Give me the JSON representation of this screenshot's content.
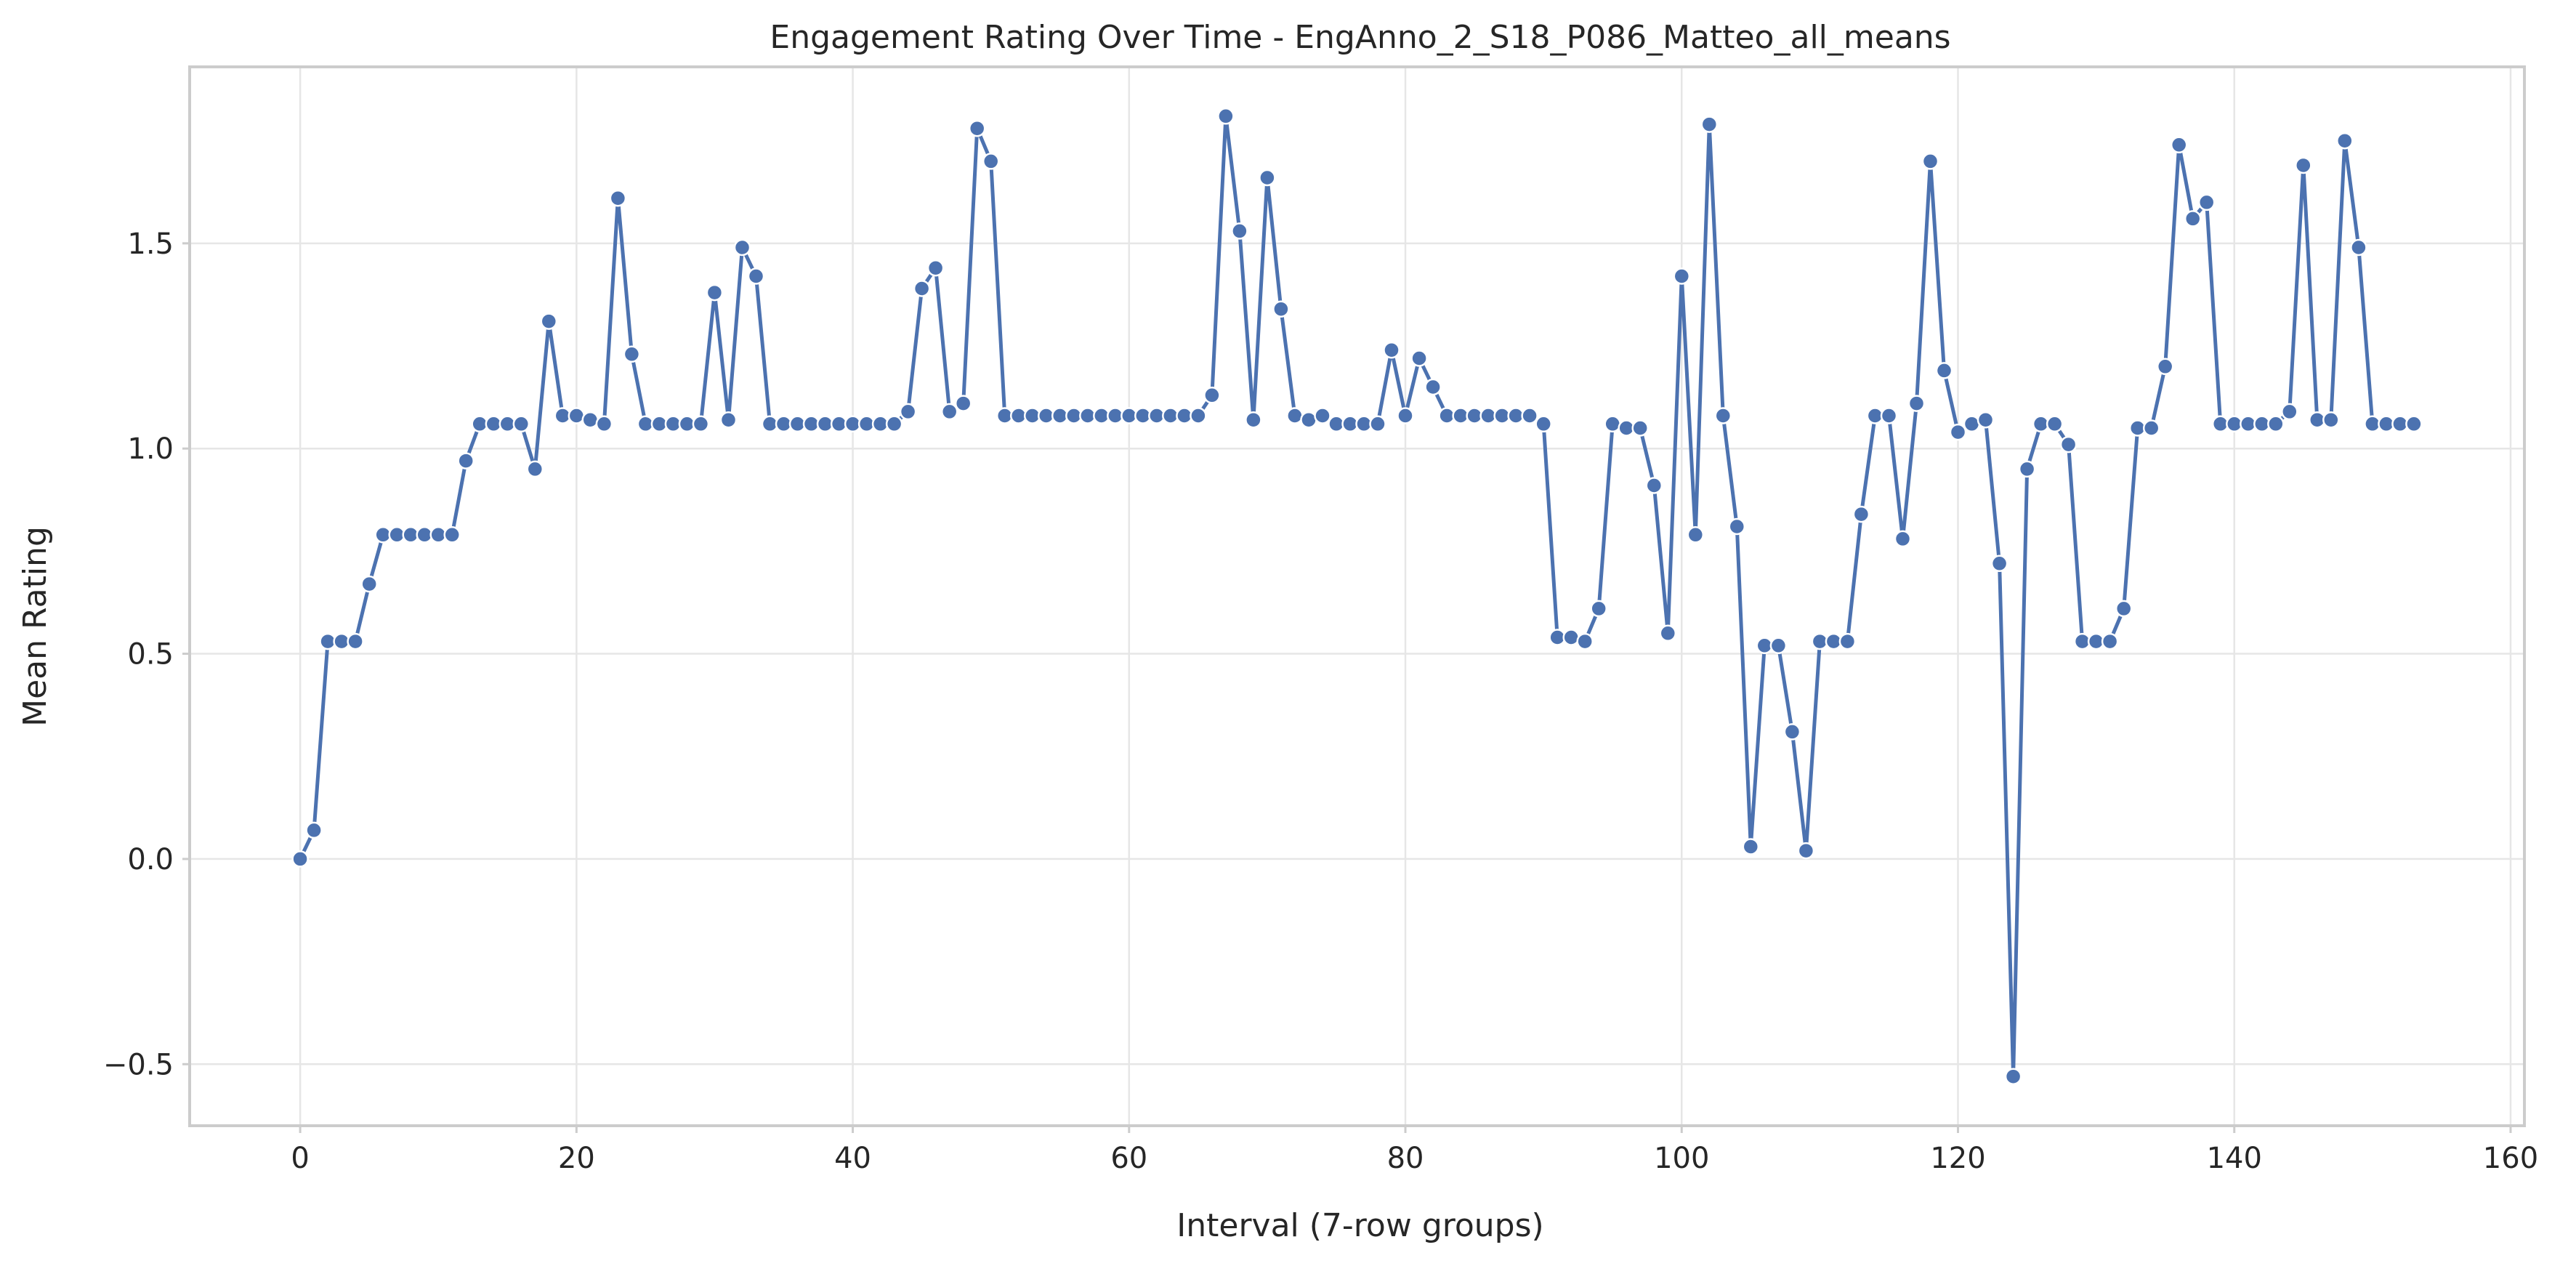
{
  "chart_data": {
    "type": "line",
    "title": "Engagement Rating Over Time - EngAnno_2_S18_P086_Matteo_all_means",
    "xlabel": "Interval (7-row groups)",
    "ylabel": "Mean Rating",
    "xlim": [
      -8,
      161
    ],
    "ylim": [
      -0.65,
      1.93
    ],
    "xticks": [
      0,
      20,
      40,
      60,
      80,
      100,
      120,
      140,
      160
    ],
    "yticks": [
      -0.5,
      0.0,
      0.5,
      1.0,
      1.5
    ],
    "xtick_labels": [
      "0",
      "20",
      "40",
      "60",
      "80",
      "100",
      "120",
      "140",
      "160"
    ],
    "ytick_labels": [
      "−0.5",
      "0.0",
      "0.5",
      "1.0",
      "1.5"
    ],
    "grid": true,
    "markers": true,
    "color": "#4c72b0",
    "series": [
      {
        "values": [
          0.0,
          0.07,
          0.53,
          0.53,
          0.53,
          0.67,
          0.79,
          0.79,
          0.79,
          0.79,
          0.79,
          0.79,
          0.97,
          1.06,
          1.06,
          1.06,
          1.06,
          0.95,
          1.31,
          1.08,
          1.08,
          1.07,
          1.06,
          1.61,
          1.23,
          1.06,
          1.06,
          1.06,
          1.06,
          1.06,
          1.38,
          1.07,
          1.49,
          1.42,
          1.06,
          1.06,
          1.06,
          1.06,
          1.06,
          1.06,
          1.06,
          1.06,
          1.06,
          1.06,
          1.09,
          1.39,
          1.44,
          1.09,
          1.11,
          1.78,
          1.7,
          1.08,
          1.08,
          1.08,
          1.08,
          1.08,
          1.08,
          1.08,
          1.08,
          1.08,
          1.08,
          1.08,
          1.08,
          1.08,
          1.08,
          1.08,
          1.13,
          1.81,
          1.53,
          1.07,
          1.66,
          1.34,
          1.08,
          1.07,
          1.08,
          1.06,
          1.06,
          1.06,
          1.06,
          1.24,
          1.08,
          1.22,
          1.15,
          1.08,
          1.08,
          1.08,
          1.08,
          1.08,
          1.08,
          1.08,
          1.06,
          0.54,
          0.54,
          0.53,
          0.61,
          1.06,
          1.05,
          1.05,
          0.91,
          0.55,
          1.42,
          0.79,
          1.79,
          1.08,
          0.81,
          0.03,
          0.52,
          0.52,
          0.31,
          0.02,
          0.53,
          0.53,
          0.53,
          0.84,
          1.08,
          1.08,
          0.78,
          1.11,
          1.7,
          1.19,
          1.04,
          1.06,
          1.07,
          0.72,
          -0.53,
          0.95,
          1.06,
          1.06,
          1.01,
          0.53,
          0.53,
          0.53,
          0.61,
          1.05,
          1.05,
          1.2,
          1.74,
          1.56,
          1.6,
          1.06,
          1.06,
          1.06,
          1.06,
          1.06,
          1.09,
          1.69,
          1.07,
          1.07,
          1.75,
          1.49,
          1.06,
          1.06,
          1.06,
          1.06
        ]
      }
    ]
  }
}
